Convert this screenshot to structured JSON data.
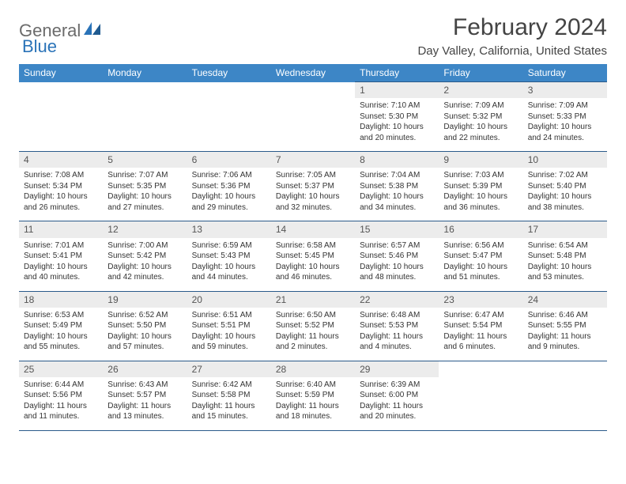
{
  "logo": {
    "part1": "General",
    "part2": "Blue"
  },
  "title": "February 2024",
  "location": "Day Valley, California, United States",
  "colors": {
    "header_bg": "#3d86c6",
    "header_text": "#ffffff",
    "border": "#2a5a8a",
    "daynum_bg": "#ececec",
    "logo_gray": "#6b6b6b",
    "logo_blue": "#2a73b8"
  },
  "weekdays": [
    "Sunday",
    "Monday",
    "Tuesday",
    "Wednesday",
    "Thursday",
    "Friday",
    "Saturday"
  ],
  "weeks": [
    [
      null,
      null,
      null,
      null,
      {
        "n": "1",
        "sr": "Sunrise: 7:10 AM",
        "ss": "Sunset: 5:30 PM",
        "d1": "Daylight: 10 hours",
        "d2": "and 20 minutes."
      },
      {
        "n": "2",
        "sr": "Sunrise: 7:09 AM",
        "ss": "Sunset: 5:32 PM",
        "d1": "Daylight: 10 hours",
        "d2": "and 22 minutes."
      },
      {
        "n": "3",
        "sr": "Sunrise: 7:09 AM",
        "ss": "Sunset: 5:33 PM",
        "d1": "Daylight: 10 hours",
        "d2": "and 24 minutes."
      }
    ],
    [
      {
        "n": "4",
        "sr": "Sunrise: 7:08 AM",
        "ss": "Sunset: 5:34 PM",
        "d1": "Daylight: 10 hours",
        "d2": "and 26 minutes."
      },
      {
        "n": "5",
        "sr": "Sunrise: 7:07 AM",
        "ss": "Sunset: 5:35 PM",
        "d1": "Daylight: 10 hours",
        "d2": "and 27 minutes."
      },
      {
        "n": "6",
        "sr": "Sunrise: 7:06 AM",
        "ss": "Sunset: 5:36 PM",
        "d1": "Daylight: 10 hours",
        "d2": "and 29 minutes."
      },
      {
        "n": "7",
        "sr": "Sunrise: 7:05 AM",
        "ss": "Sunset: 5:37 PM",
        "d1": "Daylight: 10 hours",
        "d2": "and 32 minutes."
      },
      {
        "n": "8",
        "sr": "Sunrise: 7:04 AM",
        "ss": "Sunset: 5:38 PM",
        "d1": "Daylight: 10 hours",
        "d2": "and 34 minutes."
      },
      {
        "n": "9",
        "sr": "Sunrise: 7:03 AM",
        "ss": "Sunset: 5:39 PM",
        "d1": "Daylight: 10 hours",
        "d2": "and 36 minutes."
      },
      {
        "n": "10",
        "sr": "Sunrise: 7:02 AM",
        "ss": "Sunset: 5:40 PM",
        "d1": "Daylight: 10 hours",
        "d2": "and 38 minutes."
      }
    ],
    [
      {
        "n": "11",
        "sr": "Sunrise: 7:01 AM",
        "ss": "Sunset: 5:41 PM",
        "d1": "Daylight: 10 hours",
        "d2": "and 40 minutes."
      },
      {
        "n": "12",
        "sr": "Sunrise: 7:00 AM",
        "ss": "Sunset: 5:42 PM",
        "d1": "Daylight: 10 hours",
        "d2": "and 42 minutes."
      },
      {
        "n": "13",
        "sr": "Sunrise: 6:59 AM",
        "ss": "Sunset: 5:43 PM",
        "d1": "Daylight: 10 hours",
        "d2": "and 44 minutes."
      },
      {
        "n": "14",
        "sr": "Sunrise: 6:58 AM",
        "ss": "Sunset: 5:45 PM",
        "d1": "Daylight: 10 hours",
        "d2": "and 46 minutes."
      },
      {
        "n": "15",
        "sr": "Sunrise: 6:57 AM",
        "ss": "Sunset: 5:46 PM",
        "d1": "Daylight: 10 hours",
        "d2": "and 48 minutes."
      },
      {
        "n": "16",
        "sr": "Sunrise: 6:56 AM",
        "ss": "Sunset: 5:47 PM",
        "d1": "Daylight: 10 hours",
        "d2": "and 51 minutes."
      },
      {
        "n": "17",
        "sr": "Sunrise: 6:54 AM",
        "ss": "Sunset: 5:48 PM",
        "d1": "Daylight: 10 hours",
        "d2": "and 53 minutes."
      }
    ],
    [
      {
        "n": "18",
        "sr": "Sunrise: 6:53 AM",
        "ss": "Sunset: 5:49 PM",
        "d1": "Daylight: 10 hours",
        "d2": "and 55 minutes."
      },
      {
        "n": "19",
        "sr": "Sunrise: 6:52 AM",
        "ss": "Sunset: 5:50 PM",
        "d1": "Daylight: 10 hours",
        "d2": "and 57 minutes."
      },
      {
        "n": "20",
        "sr": "Sunrise: 6:51 AM",
        "ss": "Sunset: 5:51 PM",
        "d1": "Daylight: 10 hours",
        "d2": "and 59 minutes."
      },
      {
        "n": "21",
        "sr": "Sunrise: 6:50 AM",
        "ss": "Sunset: 5:52 PM",
        "d1": "Daylight: 11 hours",
        "d2": "and 2 minutes."
      },
      {
        "n": "22",
        "sr": "Sunrise: 6:48 AM",
        "ss": "Sunset: 5:53 PM",
        "d1": "Daylight: 11 hours",
        "d2": "and 4 minutes."
      },
      {
        "n": "23",
        "sr": "Sunrise: 6:47 AM",
        "ss": "Sunset: 5:54 PM",
        "d1": "Daylight: 11 hours",
        "d2": "and 6 minutes."
      },
      {
        "n": "24",
        "sr": "Sunrise: 6:46 AM",
        "ss": "Sunset: 5:55 PM",
        "d1": "Daylight: 11 hours",
        "d2": "and 9 minutes."
      }
    ],
    [
      {
        "n": "25",
        "sr": "Sunrise: 6:44 AM",
        "ss": "Sunset: 5:56 PM",
        "d1": "Daylight: 11 hours",
        "d2": "and 11 minutes."
      },
      {
        "n": "26",
        "sr": "Sunrise: 6:43 AM",
        "ss": "Sunset: 5:57 PM",
        "d1": "Daylight: 11 hours",
        "d2": "and 13 minutes."
      },
      {
        "n": "27",
        "sr": "Sunrise: 6:42 AM",
        "ss": "Sunset: 5:58 PM",
        "d1": "Daylight: 11 hours",
        "d2": "and 15 minutes."
      },
      {
        "n": "28",
        "sr": "Sunrise: 6:40 AM",
        "ss": "Sunset: 5:59 PM",
        "d1": "Daylight: 11 hours",
        "d2": "and 18 minutes."
      },
      {
        "n": "29",
        "sr": "Sunrise: 6:39 AM",
        "ss": "Sunset: 6:00 PM",
        "d1": "Daylight: 11 hours",
        "d2": "and 20 minutes."
      },
      null,
      null
    ]
  ]
}
